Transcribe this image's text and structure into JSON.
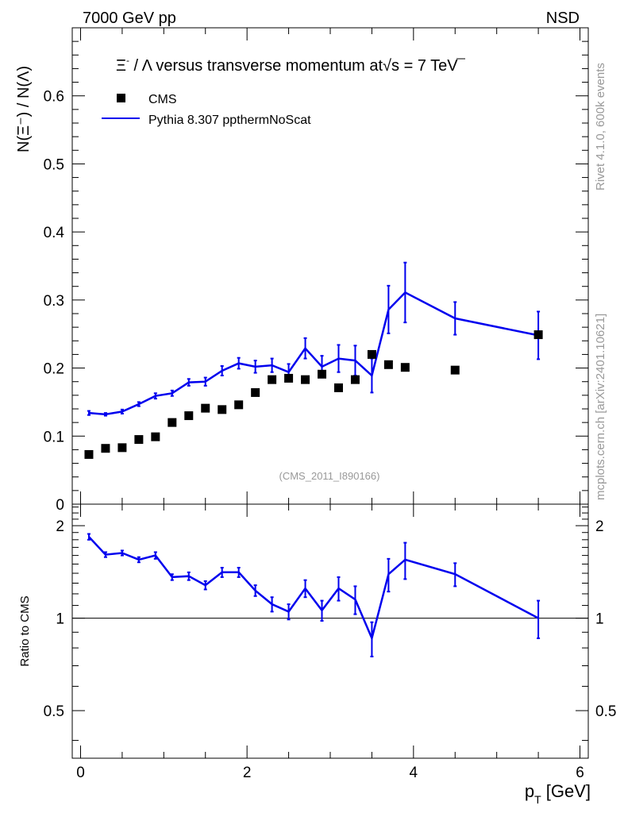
{
  "header": {
    "energy_label": "7000 GeV pp",
    "process_label": "NSD"
  },
  "side_labels": {
    "rivet_info": "Rivet 4.1.0,  600k events",
    "source_info": "mcplots.cern.ch [arXiv:2401.10621]"
  },
  "colors": {
    "data": "#000000",
    "mc": "#0000ee",
    "axis": "#000000",
    "watermark": "#999999"
  },
  "chart_data": [
    {
      "panel": "main",
      "type": "scatter",
      "title": {
        "prefix": "Ξ",
        "superscript": "-",
        "rest": " / Λ versus transverse momentum at",
        "sqrt": "s",
        "suffix": " = 7 TeV"
      },
      "ylabel": "N(Ξ⁻)  /  N(Λ)",
      "xlabel": "",
      "xlim": [
        -0.1,
        6.1
      ],
      "ylim": [
        0,
        0.7
      ],
      "yticks": [
        0,
        0.1,
        0.2,
        0.3,
        0.4,
        0.5,
        0.6
      ],
      "ytick_labels": [
        "0",
        "0.1",
        "0.2",
        "0.3",
        "0.4",
        "0.5",
        "0.6"
      ],
      "watermark": "(CMS_2011_I890166)",
      "legend_position": "top-left",
      "legend": [
        {
          "label": "CMS",
          "style": "square-marker"
        },
        {
          "label": "Pythia 8.307 ppthermNoScat",
          "style": "line"
        }
      ],
      "series": [
        {
          "name": "CMS",
          "x": [
            0.1,
            0.3,
            0.5,
            0.7,
            0.9,
            1.1,
            1.3,
            1.5,
            1.7,
            1.9,
            2.1,
            2.3,
            2.5,
            2.7,
            2.9,
            3.1,
            3.3,
            3.5,
            3.7,
            3.9,
            4.5,
            5.5
          ],
          "y": [
            0.073,
            0.082,
            0.083,
            0.095,
            0.099,
            0.12,
            0.13,
            0.141,
            0.139,
            0.146,
            0.164,
            0.183,
            0.185,
            0.183,
            0.191,
            0.171,
            0.183,
            0.22,
            0.205,
            0.201,
            0.197,
            0.249
          ]
        },
        {
          "name": "Pythia 8.307 ppthermNoScat",
          "x": [
            0.1,
            0.3,
            0.5,
            0.7,
            0.9,
            1.1,
            1.3,
            1.5,
            1.7,
            1.9,
            2.1,
            2.3,
            2.5,
            2.7,
            2.9,
            3.1,
            3.3,
            3.5,
            3.7,
            3.9,
            4.5,
            5.5
          ],
          "y": [
            0.134,
            0.132,
            0.136,
            0.147,
            0.159,
            0.163,
            0.179,
            0.18,
            0.196,
            0.207,
            0.202,
            0.204,
            0.194,
            0.229,
            0.202,
            0.214,
            0.211,
            0.189,
            0.286,
            0.311,
            0.273,
            0.248
          ],
          "yerr": [
            0.003,
            0.002,
            0.003,
            0.003,
            0.004,
            0.004,
            0.005,
            0.006,
            0.007,
            0.008,
            0.009,
            0.01,
            0.012,
            0.015,
            0.016,
            0.02,
            0.022,
            0.025,
            0.035,
            0.044,
            0.024,
            0.035
          ]
        }
      ]
    },
    {
      "panel": "ratio",
      "type": "line",
      "ylabel": "Ratio to CMS",
      "xlabel": "p_T [GeV]",
      "xlim": [
        -0.1,
        6.1
      ],
      "ylim": [
        0.35,
        2.35
      ],
      "yscale": "log",
      "yticks": [
        0.5,
        1,
        2
      ],
      "ytick_labels": [
        "0.5",
        "1",
        "2"
      ],
      "xticks": [
        0,
        2,
        4,
        6
      ],
      "xtick_labels": [
        "0",
        "2",
        "4",
        "6"
      ],
      "reference_line": 1,
      "series": [
        {
          "name": "Pythia 8.307 ppthermNoScat",
          "x": [
            0.1,
            0.3,
            0.5,
            0.7,
            0.9,
            1.1,
            1.3,
            1.5,
            1.7,
            1.9,
            2.1,
            2.3,
            2.5,
            2.7,
            2.9,
            3.1,
            3.3,
            3.5,
            3.7,
            3.9,
            4.5,
            5.5
          ],
          "y": [
            1.84,
            1.61,
            1.63,
            1.55,
            1.6,
            1.36,
            1.37,
            1.28,
            1.41,
            1.41,
            1.23,
            1.11,
            1.05,
            1.25,
            1.06,
            1.25,
            1.15,
            0.86,
            1.39,
            1.55,
            1.39,
            1.0
          ],
          "yerr": [
            0.04,
            0.03,
            0.03,
            0.03,
            0.04,
            0.03,
            0.04,
            0.04,
            0.05,
            0.05,
            0.05,
            0.06,
            0.06,
            0.08,
            0.08,
            0.11,
            0.12,
            0.11,
            0.17,
            0.21,
            0.12,
            0.14
          ]
        }
      ]
    }
  ],
  "axis_title_x": {
    "main": "p",
    "sub": "T",
    "unit": " [GeV]"
  }
}
